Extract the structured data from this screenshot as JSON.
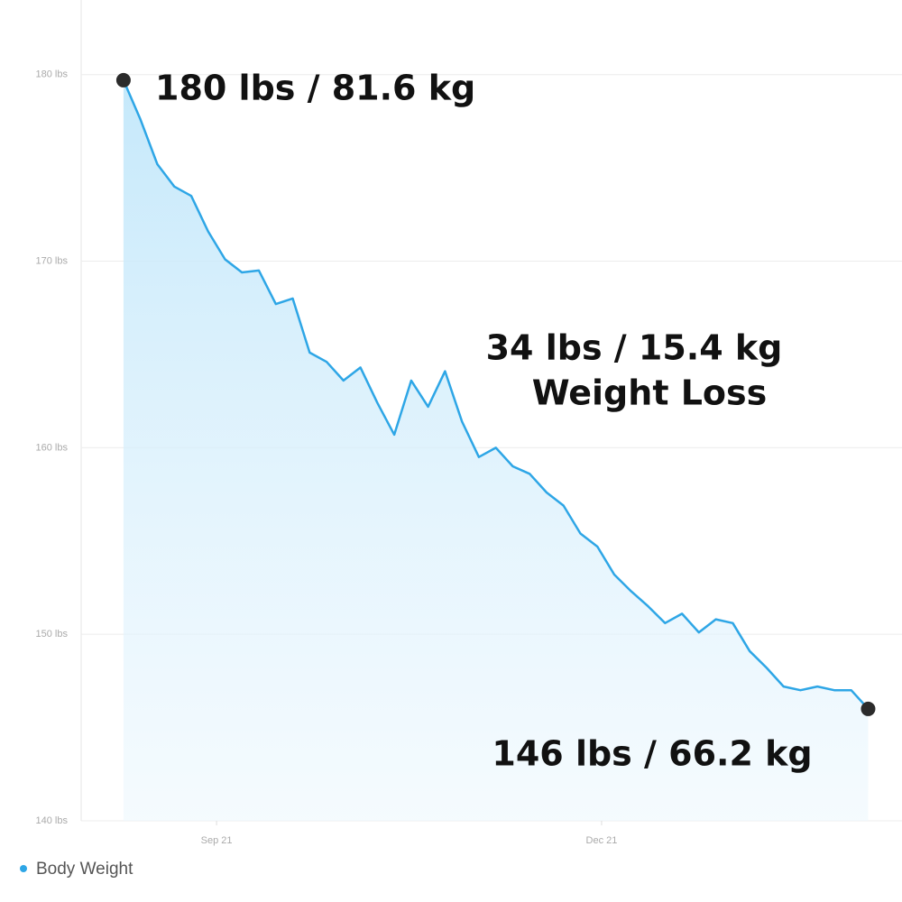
{
  "chart_data": {
    "type": "line",
    "series": [
      {
        "name": "Body Weight",
        "color": "#2ea6e6",
        "values": [
          179.7,
          177.6,
          175.2,
          174.0,
          173.5,
          171.6,
          170.1,
          169.4,
          169.5,
          167.7,
          168.0,
          165.1,
          164.6,
          163.6,
          164.3,
          162.4,
          160.7,
          163.6,
          162.2,
          164.1,
          161.4,
          159.5,
          160.0,
          159.0,
          158.6,
          157.6,
          156.9,
          155.4,
          154.7,
          153.2,
          152.3,
          151.5,
          150.6,
          151.1,
          150.1,
          150.8,
          150.6,
          149.1,
          148.2,
          147.2,
          147.0,
          147.2,
          147.0,
          147.0,
          146.0
        ]
      }
    ],
    "x": [
      0,
      4,
      8,
      12,
      16,
      20,
      24,
      28,
      32,
      36,
      40,
      44,
      48,
      52,
      56,
      60,
      64,
      68,
      72,
      76,
      80,
      84,
      88,
      92,
      96,
      100,
      104,
      108,
      112,
      116,
      120,
      124,
      128,
      132,
      136,
      140,
      144,
      148,
      152,
      156,
      160,
      164,
      168,
      172,
      176
    ],
    "xlim": [
      -10,
      184
    ],
    "xticks": [
      {
        "value": 22,
        "label": "Sep 21"
      },
      {
        "value": 113,
        "label": "Dec 21"
      }
    ],
    "ylim": [
      140,
      184
    ],
    "yticks": [
      {
        "value": 140,
        "label": "140 lbs"
      },
      {
        "value": 150,
        "label": "150 lbs"
      },
      {
        "value": 160,
        "label": "160 lbs"
      },
      {
        "value": 170,
        "label": "170 lbs"
      },
      {
        "value": 180,
        "label": "180 lbs"
      }
    ],
    "grid": true,
    "annotations": [
      "180 lbs / 81.6 kg",
      "34 lbs / 15.4 kg",
      "Weight Loss",
      "146 lbs / 66.2 kg"
    ]
  }
}
